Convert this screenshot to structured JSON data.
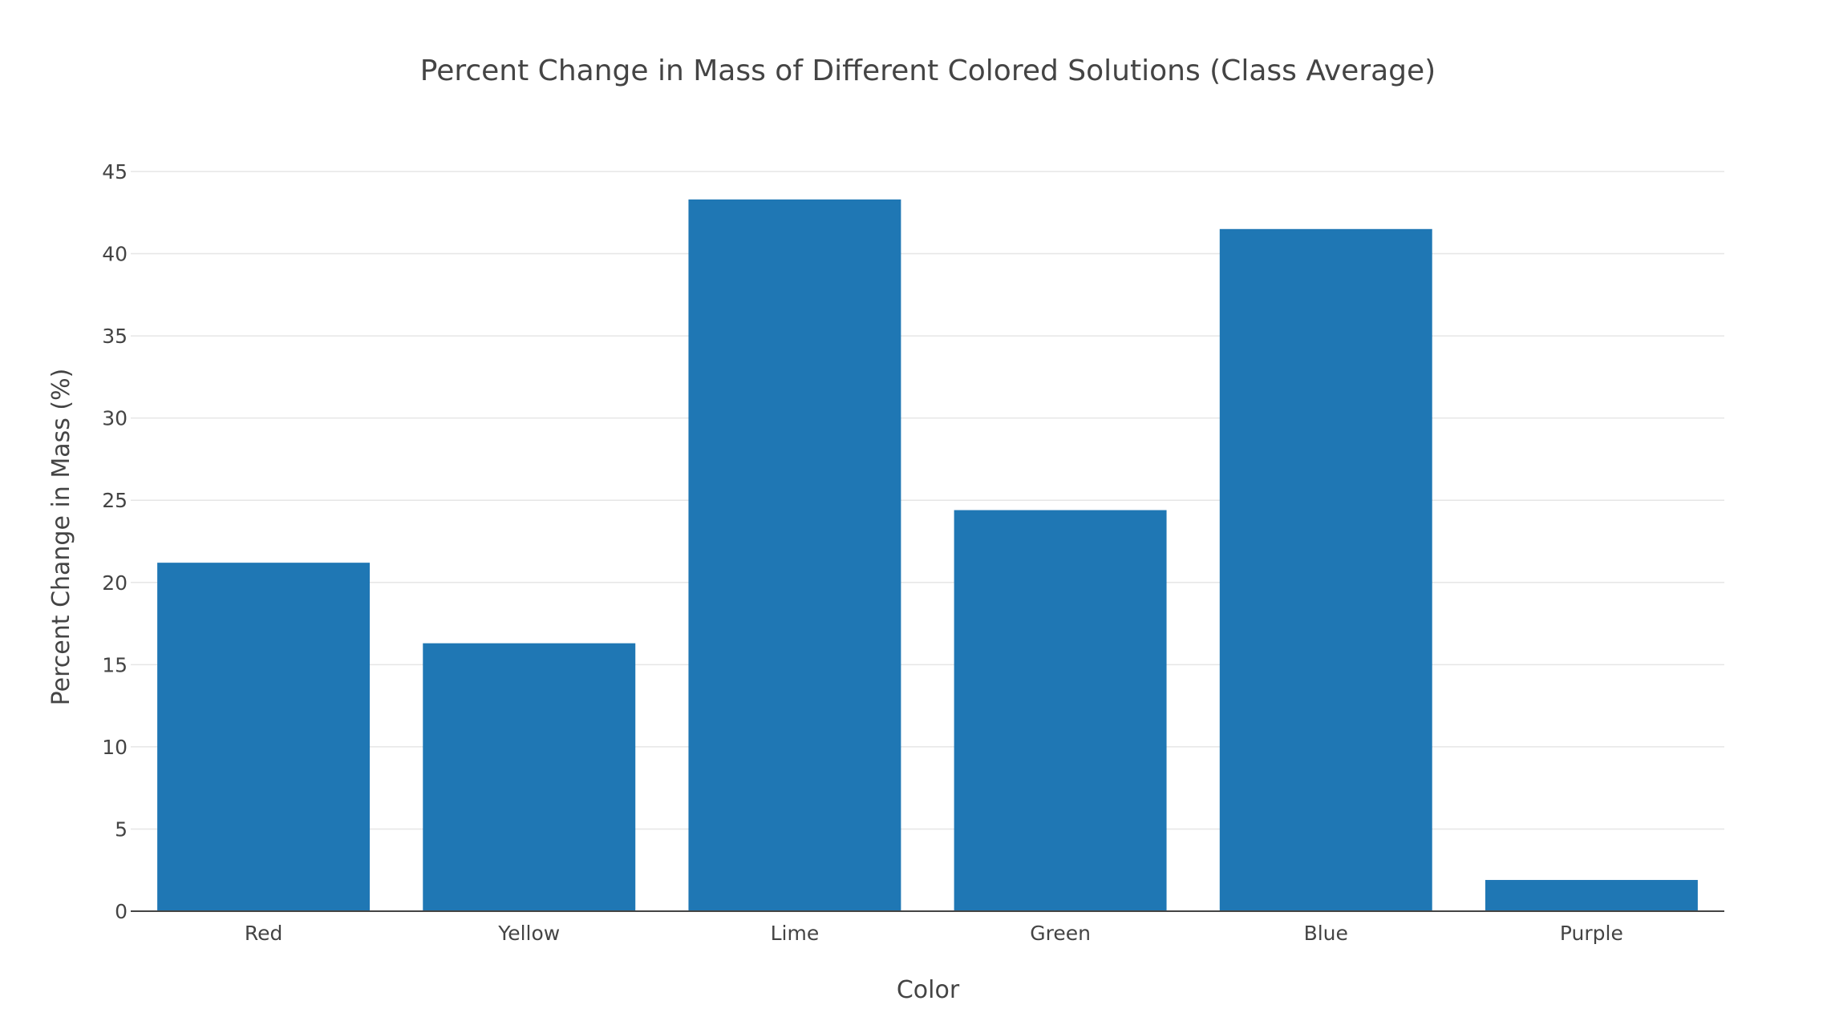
{
  "chart_data": {
    "type": "bar",
    "title": "Percent Change in Mass of Different Colored Solutions (Class Average)",
    "xlabel": "Color",
    "ylabel": "Percent Change in Mass (%)",
    "categories": [
      "Red",
      "Yellow",
      "Lime",
      "Green",
      "Blue",
      "Purple"
    ],
    "values": [
      21.2,
      16.3,
      43.3,
      24.4,
      41.5,
      1.9
    ],
    "ylim": [
      0,
      45
    ],
    "yticks": [
      0,
      5,
      10,
      15,
      20,
      25,
      30,
      35,
      40,
      45
    ],
    "bar_color": "#1f77b4",
    "grid": true,
    "legend": "none"
  }
}
